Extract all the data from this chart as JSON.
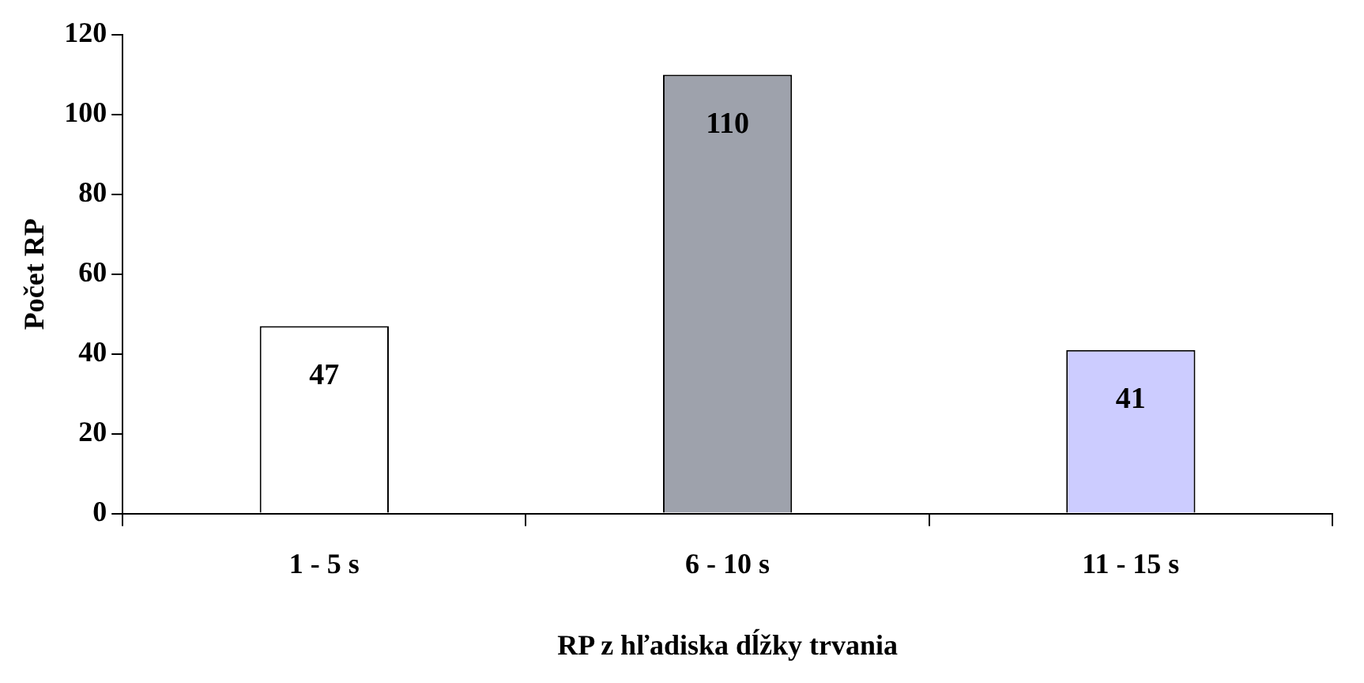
{
  "chart_data": {
    "type": "bar",
    "xlabel": "RP z hľadiska dĺžky trvania",
    "ylabel": "Počet RP",
    "categories": [
      "1 - 5 s",
      "6 - 10 s",
      "11 - 15 s"
    ],
    "values": [
      47,
      110,
      41
    ],
    "colors": [
      "#ffffff",
      "#9ea2ac",
      "#ccccff"
    ],
    "ylim": [
      0,
      120
    ],
    "yticks": [
      0,
      20,
      40,
      60,
      80,
      100,
      120
    ],
    "data_labels": true,
    "grid": false,
    "legend": false
  }
}
